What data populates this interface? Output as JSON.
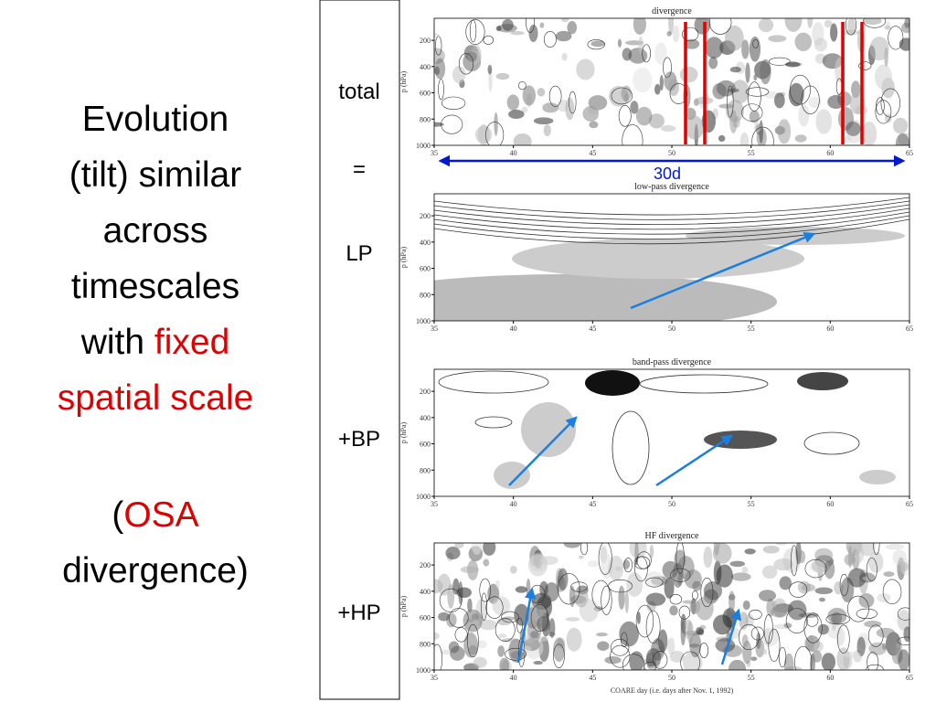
{
  "slide": {
    "text_block": {
      "line1": "Evolution",
      "line2": "(tilt) similar",
      "line3": "across",
      "line4": "timescales",
      "line5_prefix": "with",
      "line5_highlight": "fixed",
      "line6_highlight": "spatial scale",
      "line7_prefix": "(",
      "line7_highlight": "OSA",
      "line8": "divergence)"
    },
    "box_labels": [
      "total",
      "=",
      "LP",
      "+BP",
      "+HP"
    ],
    "annotation": "30d",
    "y_axis_label": "p (hPa)",
    "x_axis_label": "COARE day (i.e. days after Nov. 1, 1992)",
    "yticks": [
      200,
      400,
      600,
      800,
      1000
    ],
    "xticks": [
      35,
      40,
      45,
      50,
      55,
      60,
      65
    ],
    "panels": [
      {
        "title": "divergence"
      },
      {
        "title": "low-pass divergence"
      },
      {
        "title": "band-pass divergence"
      },
      {
        "title": "HF divergence"
      }
    ]
  }
}
